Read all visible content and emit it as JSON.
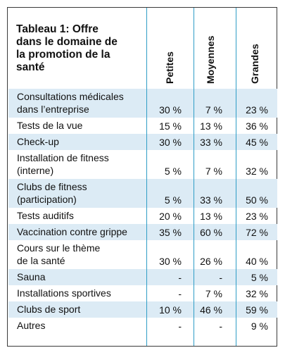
{
  "table": {
    "title": "Tableau 1: Offre dans le domaine de la promotion de la santé",
    "title_lines": [
      "Tableau 1: Offre",
      "dans le domaine de",
      "la promotion de la",
      "santé"
    ],
    "columns": [
      "Petites",
      "Moyennes",
      "Grandes"
    ],
    "shade_color": "#dcebf5",
    "divider_color": "#2f9dc6",
    "rows": [
      {
        "label": [
          "Consultations médicales",
          "dans l’entreprise"
        ],
        "values": [
          "30 %",
          "7 %",
          "23 %"
        ],
        "shaded": true
      },
      {
        "label": [
          "Tests de la vue"
        ],
        "values": [
          "15 %",
          "13 %",
          "36 %"
        ],
        "shaded": false
      },
      {
        "label": [
          "Check-up"
        ],
        "values": [
          "30 %",
          "33 %",
          "45 %"
        ],
        "shaded": true
      },
      {
        "label": [
          "Installation de fitness",
          "(interne)"
        ],
        "values": [
          "5 %",
          "7 %",
          "32 %"
        ],
        "shaded": false
      },
      {
        "label": [
          "Clubs de fitness",
          "(participation)"
        ],
        "values": [
          "5 %",
          "33 %",
          "50 %"
        ],
        "shaded": true
      },
      {
        "label": [
          "Tests auditifs"
        ],
        "values": [
          "20 %",
          "13 %",
          "23 %"
        ],
        "shaded": false
      },
      {
        "label": [
          "Vaccination contre grippe"
        ],
        "values": [
          "35 %",
          "60 %",
          "72 %"
        ],
        "shaded": true
      },
      {
        "label": [
          "Cours sur le thème",
          "de la santé"
        ],
        "values": [
          "30 %",
          "26 %",
          "40 %"
        ],
        "shaded": false
      },
      {
        "label": [
          "Sauna"
        ],
        "values": [
          "-",
          "-",
          "5 %"
        ],
        "shaded": true
      },
      {
        "label": [
          "Installations sportives"
        ],
        "values": [
          "-",
          "7 %",
          "32 %"
        ],
        "shaded": false
      },
      {
        "label": [
          "Clubs de sport"
        ],
        "values": [
          "10 %",
          "46 %",
          "59 %"
        ],
        "shaded": true
      },
      {
        "label": [
          "Autres"
        ],
        "values": [
          "-",
          "-",
          "9 %"
        ],
        "shaded": false
      }
    ]
  }
}
